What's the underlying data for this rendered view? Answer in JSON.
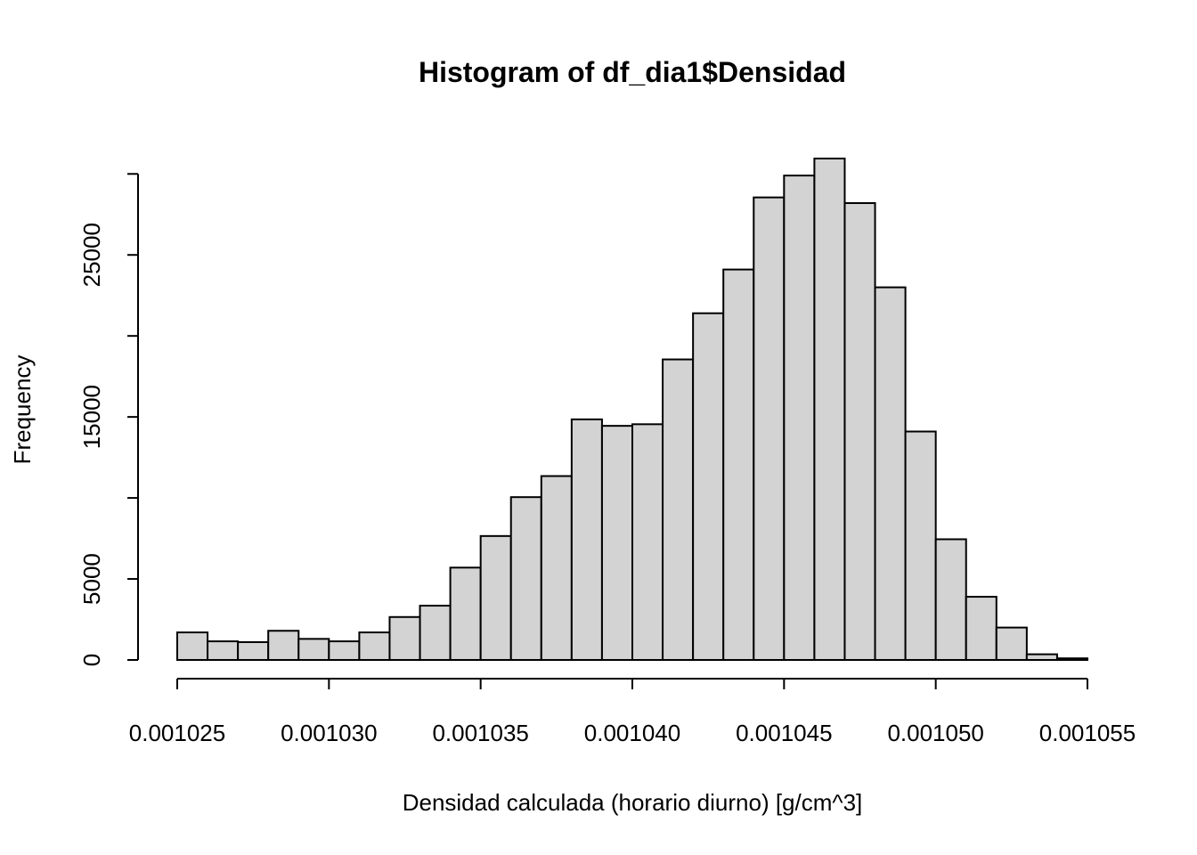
{
  "chart_data": {
    "type": "histogram",
    "title": "Histogram of df_dia1$Densidad",
    "x_label": "Densidad calculada (horario diurno) [g/cm^3]",
    "y_label": "Frequency",
    "bins": [
      0.001025,
      0.001026,
      0.001027,
      0.001028,
      0.001029,
      0.00103,
      0.001031,
      0.001032,
      0.001033,
      0.001034,
      0.001035,
      0.001036,
      0.001037,
      0.001038,
      0.001039,
      0.00104,
      0.001041,
      0.001042,
      0.001043,
      0.001044,
      0.001045,
      0.001046,
      0.001047,
      0.001048,
      0.001049,
      0.00105,
      0.001051,
      0.001052,
      0.001053,
      0.001054,
      0.001055
    ],
    "values": [
      1700,
      1150,
      1100,
      1800,
      1300,
      1150,
      1700,
      2650,
      3350,
      5700,
      7650,
      10050,
      11350,
      14850,
      14450,
      14550,
      18550,
      21400,
      24100,
      28550,
      29900,
      30950,
      28200,
      23000,
      14100,
      7450,
      3900,
      2000,
      350,
      100
    ],
    "color": "#d3d3d3",
    "xlim": [
      0.001025,
      0.001055
    ],
    "xticks": [
      0.001025,
      {
        "value": 0.00103,
        "label": "0.001030"
      },
      0.001035,
      {
        "value": 0.00104,
        "label": "0.001040"
      },
      0.001045,
      {
        "value": 0.00105,
        "label": "0.001050"
      },
      0.001055
    ],
    "ylim": [
      0,
      30950
    ],
    "yticks": [
      0,
      5000,
      {
        "value": 10000,
        "label": null
      },
      15000,
      {
        "value": 20000,
        "label": null
      },
      25000,
      {
        "value": 30000,
        "label": null
      }
    ]
  }
}
